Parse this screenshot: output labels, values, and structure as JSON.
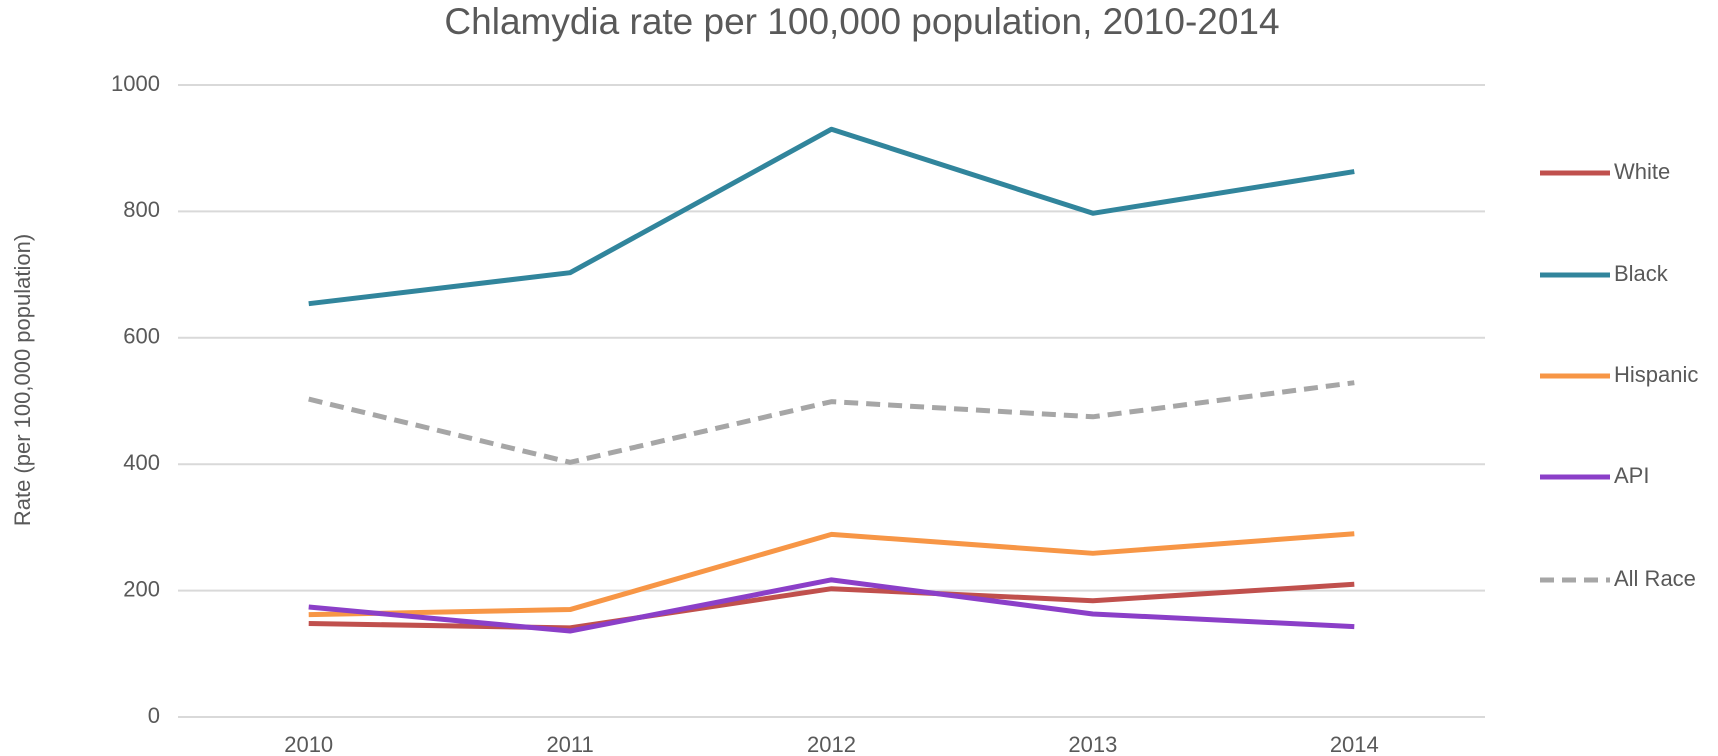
{
  "chart_data": {
    "type": "line",
    "title": "Chlamydia rate per 100,000 population, 2010-2014",
    "ylabel": "Rate (per 100,000 population)",
    "categories": [
      "2010",
      "2011",
      "2012",
      "2013",
      "2014"
    ],
    "series": [
      {
        "name": "White",
        "color": "#c0504d",
        "values": [
          148,
          141,
          203,
          184,
          210
        ]
      },
      {
        "name": "Black",
        "color": "#31859c",
        "values": [
          654,
          703,
          930,
          797,
          863
        ]
      },
      {
        "name": "Hispanic",
        "color": "#f79646",
        "values": [
          162,
          170,
          289,
          259,
          290
        ]
      },
      {
        "name": "API",
        "color": "#8b3fc8",
        "values": [
          174,
          136,
          217,
          163,
          143
        ]
      },
      {
        "name": "All Race",
        "color": "#a6a6a6",
        "line_style": "dashed",
        "values": [
          503,
          403,
          499,
          475,
          529
        ]
      }
    ],
    "ylim": [
      0,
      1000
    ],
    "yticks": [
      0,
      200,
      400,
      600,
      800,
      1000
    ],
    "grid": true,
    "legend": "right"
  }
}
